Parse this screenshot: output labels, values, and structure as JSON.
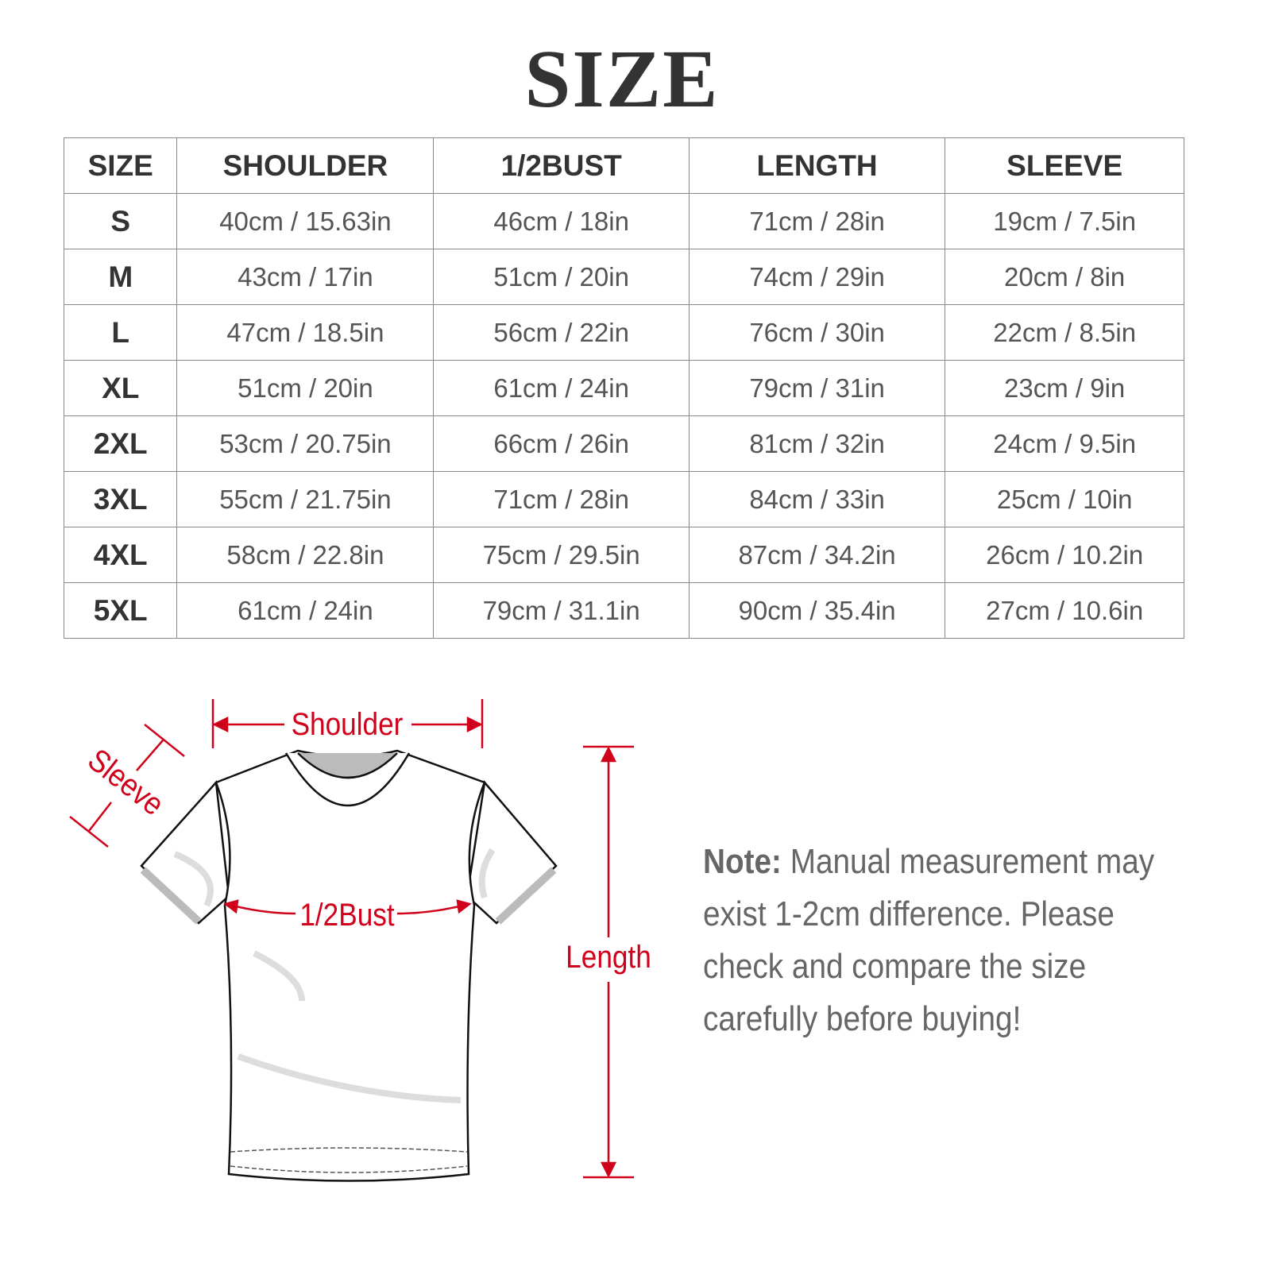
{
  "title": "SIZE",
  "table": {
    "headers": [
      "SIZE",
      "SHOULDER",
      "1/2BUST",
      "LENGTH",
      "SLEEVE"
    ],
    "rows": [
      [
        "S",
        "40cm / 15.63in",
        "46cm / 18in",
        "71cm / 28in",
        "19cm / 7.5in"
      ],
      [
        "M",
        "43cm / 17in",
        "51cm / 20in",
        "74cm / 29in",
        "20cm / 8in"
      ],
      [
        "L",
        "47cm / 18.5in",
        "56cm / 22in",
        "76cm / 30in",
        "22cm / 8.5in"
      ],
      [
        "XL",
        "51cm / 20in",
        "61cm / 24in",
        "79cm / 31in",
        "23cm / 9in"
      ],
      [
        "2XL",
        "53cm / 20.75in",
        "66cm / 26in",
        "81cm / 32in",
        "24cm / 9.5in"
      ],
      [
        "3XL",
        "55cm / 21.75in",
        "71cm / 28in",
        "84cm / 33in",
        "25cm / 10in"
      ],
      [
        "4XL",
        "58cm / 22.8in",
        "75cm / 29.5in",
        "87cm / 34.2in",
        "26cm / 10.2in"
      ],
      [
        "5XL",
        "61cm / 24in",
        "79cm / 31.1in",
        "90cm / 35.4in",
        "27cm / 10.6in"
      ]
    ]
  },
  "diagram": {
    "labels": {
      "shoulder": "Shoulder",
      "sleeve": "Sleeve",
      "bust": "1/2Bust",
      "length": "Length"
    },
    "label_color": "#d0021b",
    "icon": "tshirt-illustration"
  },
  "note": {
    "label": "Note:",
    "text": " Manual measurement may exist 1-2cm difference. Please check and compare the size carefully before buying!"
  }
}
